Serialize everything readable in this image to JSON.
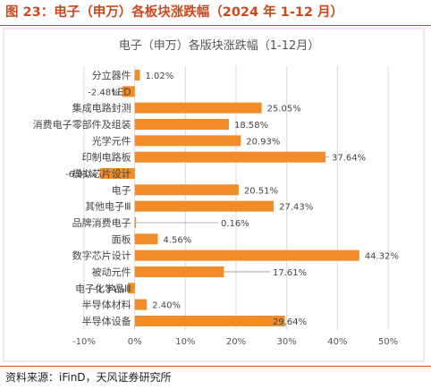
{
  "figure": {
    "title": "图 23：电子（申万）各板块涨跌幅（2024 年 1-12 月）",
    "source": "资料来源：iFinD，天风证券研究所"
  },
  "colors": {
    "accent": "#c84a1e",
    "bar": "#f28c28",
    "grid": "#d9d9d9",
    "axis_text": "#555555",
    "label_text": "#444444"
  },
  "chart_data": {
    "type": "bar",
    "orientation": "horizontal",
    "title": "电子（申万）各版块涨跌幅（1-12月）",
    "xlim": [
      -10,
      50
    ],
    "xticks": [
      -10,
      0,
      10,
      20,
      30,
      40,
      50
    ],
    "tick_suffix": "%",
    "grid": true,
    "legend": "none",
    "categories": [
      "分立器件",
      "LED",
      "集成电路封测",
      "消费电子零部件及组装",
      "光学元件",
      "印制电路板",
      "模拟芯片设计",
      "电子",
      "其他电子Ⅲ",
      "品牌消费电子",
      "面板",
      "数字芯片设计",
      "被动元件",
      "电子化学品Ⅲ",
      "半导体材料",
      "半导体设备"
    ],
    "values": [
      1.02,
      -2.48,
      25.05,
      18.58,
      20.93,
      37.64,
      -6.91,
      20.51,
      27.43,
      0.16,
      4.56,
      44.32,
      17.61,
      -1.34,
      2.4,
      29.64
    ],
    "data_labels": [
      "1.02%",
      "-2.48%",
      "25.05%",
      "18.58%",
      "20.93%",
      "37.64%",
      "-6.91%",
      "20.51%",
      "27.43%",
      "0.16%",
      "4.56%",
      "44.32%",
      "17.61%",
      "-1.34%",
      "2.40%",
      "29.64%"
    ],
    "callout_values": [
      false,
      false,
      false,
      false,
      false,
      true,
      false,
      false,
      false,
      true,
      false,
      false,
      true,
      false,
      false,
      true
    ]
  }
}
